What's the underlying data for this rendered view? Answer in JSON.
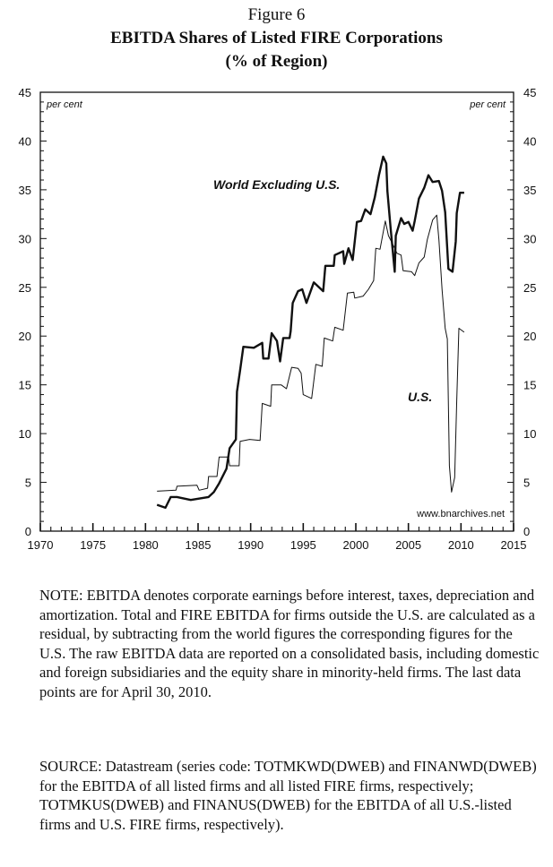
{
  "figure_label": "Figure 6",
  "title": "EBITDA Shares of Listed FIRE Corporations",
  "subtitle": "(% of Region)",
  "note": "NOTE: EBITDA denotes corporate earnings before interest, taxes, depreciation and amortization. Total and FIRE EBITDA for firms outside the U.S. are calculated as a residual, by subtracting from the world figures the corresponding figures for the U.S. The raw EBITDA data are reported on a consolidated basis, including domestic and foreign subsidiaries and the equity share in minority-held firms. The last data points are for April 30, 2010.",
  "source": "SOURCE: Datastream (series code: TOTMKWD(DWEB) and FINANWD(DWEB) for the EBITDA of all listed firms and all listed FIRE firms, respectively; TOTMKUS(DWEB) and FINANUS(DWEB) for the EBITDA of all U.S.-listed firms and U.S. FIRE firms, respectively).",
  "chart_data": {
    "type": "line",
    "title": "EBITDA Shares of Listed FIRE Corporations",
    "ylabel_left": "per cent",
    "ylabel_right": "per cent",
    "watermark": "www.bnarchives.net",
    "xlim": [
      1970,
      2015
    ],
    "ylim": [
      0,
      45
    ],
    "x_ticks": [
      "1970",
      "1975",
      "1980",
      "1985",
      "1990",
      "1995",
      "2000",
      "2005",
      "2010",
      "2015"
    ],
    "y_ticks": [
      "0",
      "5",
      "10",
      "15",
      "20",
      "25",
      "30",
      "35",
      "40",
      "45"
    ],
    "series": [
      {
        "name": "World Excluding U.S.",
        "style": "thick",
        "points": [
          [
            1981.1,
            2.7
          ],
          [
            1981.9,
            2.4
          ],
          [
            1982.4,
            3.5
          ],
          [
            1983,
            3.5
          ],
          [
            1984.3,
            3.2
          ],
          [
            1986,
            3.5
          ],
          [
            1986.5,
            4
          ],
          [
            1987,
            4.9
          ],
          [
            1987.7,
            6.4
          ],
          [
            1988,
            8.5
          ],
          [
            1988.6,
            9.4
          ],
          [
            1988.7,
            14.3
          ],
          [
            1989,
            16.5
          ],
          [
            1989.3,
            18.9
          ],
          [
            1990.3,
            18.8
          ],
          [
            1991.1,
            19.3
          ],
          [
            1991.2,
            17.7
          ],
          [
            1991.7,
            17.7
          ],
          [
            1992,
            20.3
          ],
          [
            1992.5,
            19.5
          ],
          [
            1992.8,
            17.4
          ],
          [
            1993.1,
            19.8
          ],
          [
            1993.7,
            19.8
          ],
          [
            1993.8,
            20.5
          ],
          [
            1994,
            23.4
          ],
          [
            1994.5,
            24.6
          ],
          [
            1994.9,
            24.8
          ],
          [
            1995.3,
            23.4
          ],
          [
            1996,
            25.5
          ],
          [
            1996.9,
            24.6
          ],
          [
            1997.1,
            27.2
          ],
          [
            1997.9,
            27.2
          ],
          [
            1998,
            28.3
          ],
          [
            1998.8,
            28.7
          ],
          [
            1998.9,
            27.4
          ],
          [
            1999.3,
            29
          ],
          [
            1999.7,
            27.8
          ],
          [
            2000.1,
            31.7
          ],
          [
            2000.5,
            31.8
          ],
          [
            2000.9,
            33
          ],
          [
            2001.4,
            32.5
          ],
          [
            2001.8,
            34.2
          ],
          [
            2002.2,
            36.5
          ],
          [
            2002.6,
            38.4
          ],
          [
            2002.9,
            37.7
          ],
          [
            2003,
            34.9
          ],
          [
            2003.3,
            31.2
          ],
          [
            2003.7,
            26.6
          ],
          [
            2003.8,
            30.3
          ],
          [
            2004.3,
            32.1
          ],
          [
            2004.6,
            31.5
          ],
          [
            2005,
            31.7
          ],
          [
            2005.4,
            30.8
          ],
          [
            2005.6,
            31.8
          ],
          [
            2006,
            34.1
          ],
          [
            2006.5,
            35.2
          ],
          [
            2006.9,
            36.5
          ],
          [
            2007.3,
            35.8
          ],
          [
            2007.9,
            35.9
          ],
          [
            2008.2,
            34.9
          ],
          [
            2008.5,
            32.7
          ],
          [
            2008.8,
            26.9
          ],
          [
            2009.2,
            26.6
          ],
          [
            2009.5,
            29.7
          ],
          [
            2009.6,
            32.6
          ],
          [
            2009.9,
            34.7
          ],
          [
            2010.3,
            34.7
          ]
        ]
      },
      {
        "name": "U.S.",
        "style": "thin",
        "points": [
          [
            1981.1,
            4.1
          ],
          [
            1982.9,
            4.2
          ],
          [
            1983,
            4.6
          ],
          [
            1984.9,
            4.7
          ],
          [
            1985.1,
            4.2
          ],
          [
            1985.9,
            4.4
          ],
          [
            1986,
            5.6
          ],
          [
            1986.8,
            5.6
          ],
          [
            1987,
            7.6
          ],
          [
            1987.9,
            7.6
          ],
          [
            1988,
            6.7
          ],
          [
            1988.9,
            6.7
          ],
          [
            1989,
            9.2
          ],
          [
            1989.9,
            9.4
          ],
          [
            1990.9,
            9.3
          ],
          [
            1991.1,
            13.1
          ],
          [
            1991.9,
            12.8
          ],
          [
            1992,
            15
          ],
          [
            1992.9,
            15
          ],
          [
            1993.4,
            14.6
          ],
          [
            1993.9,
            16.8
          ],
          [
            1994.5,
            16.7
          ],
          [
            1994.8,
            16.2
          ],
          [
            1995,
            14
          ],
          [
            1995.8,
            13.6
          ],
          [
            1996.2,
            17.1
          ],
          [
            1996.8,
            16.9
          ],
          [
            1997,
            19.8
          ],
          [
            1997.8,
            19.5
          ],
          [
            1998,
            20.9
          ],
          [
            1998.8,
            20.6
          ],
          [
            1999.2,
            24.4
          ],
          [
            1999.8,
            24.5
          ],
          [
            1999.9,
            23.9
          ],
          [
            2000.7,
            24.1
          ],
          [
            2001.2,
            24.8
          ],
          [
            2001.7,
            25.7
          ],
          [
            2001.9,
            29
          ],
          [
            2002.3,
            28.9
          ],
          [
            2002.8,
            31.8
          ],
          [
            2003.1,
            30.3
          ],
          [
            2003.7,
            29
          ],
          [
            2003.9,
            28.5
          ],
          [
            2004.3,
            28.3
          ],
          [
            2004.5,
            26.7
          ],
          [
            2005.3,
            26.6
          ],
          [
            2005.6,
            26.2
          ],
          [
            2006,
            27.5
          ],
          [
            2006.5,
            28.1
          ],
          [
            2006.8,
            29.9
          ],
          [
            2007.3,
            31.9
          ],
          [
            2007.7,
            32.4
          ],
          [
            2007.9,
            29.9
          ],
          [
            2008.2,
            24.8
          ],
          [
            2008.5,
            20.8
          ],
          [
            2008.7,
            19.7
          ],
          [
            2008.9,
            6.7
          ],
          [
            2009.1,
            4
          ],
          [
            2009.4,
            5.5
          ],
          [
            2009.6,
            13.4
          ],
          [
            2009.8,
            20.8
          ],
          [
            2010.3,
            20.4
          ]
        ]
      }
    ]
  }
}
